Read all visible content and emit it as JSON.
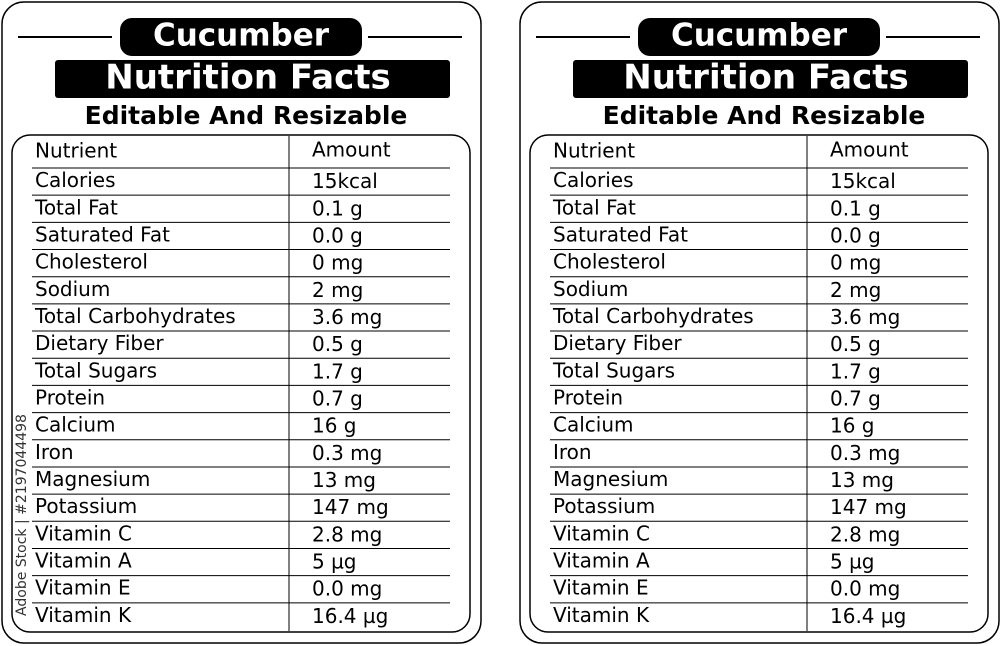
{
  "panels": [
    {
      "title": "Cucumber",
      "subtitle": "Nutrition Facts",
      "tagline": "Editable And Resizable",
      "table": {
        "header": [
          "Nutrient",
          "Amount"
        ],
        "rows": [
          [
            "Calories",
            "15kcal"
          ],
          [
            "Total Fat",
            "0.1 g"
          ],
          [
            "Saturated Fat",
            "0.0 g"
          ],
          [
            "Cholesterol",
            "0 mg"
          ],
          [
            "Sodium",
            "2 mg"
          ],
          [
            "Total Carbohydrates",
            "3.6 mg"
          ],
          [
            "Dietary Fiber",
            "0.5 g"
          ],
          [
            "Total Sugars",
            "1.7 g"
          ],
          [
            "Protein",
            "0.7 g"
          ],
          [
            "Calcium",
            "16 g"
          ],
          [
            "Iron",
            "0.3 mg"
          ],
          [
            "Magnesium",
            "13 mg"
          ],
          [
            "Potassium",
            "147 mg"
          ],
          [
            "Vitamin C",
            "2.8 mg"
          ],
          [
            "Vitamin A",
            "5 µg"
          ],
          [
            "Vitamin E",
            "0.0 mg"
          ],
          [
            "Vitamin K",
            "16.4 µg"
          ]
        ]
      }
    },
    {
      "title": "Cucumber",
      "subtitle": "Nutrition Facts",
      "tagline": "Editable And Resizable",
      "table": {
        "header": [
          "Nutrient",
          "Amount"
        ],
        "rows": [
          [
            "Calories",
            "15kcal"
          ],
          [
            "Total Fat",
            "0.1 g"
          ],
          [
            "Saturated Fat",
            "0.0 g"
          ],
          [
            "Cholesterol",
            "0 mg"
          ],
          [
            "Sodium",
            "2 mg"
          ],
          [
            "Total Carbohydrates",
            "3.6 mg"
          ],
          [
            "Dietary Fiber",
            "0.5 g"
          ],
          [
            "Total Sugars",
            "1.7 g"
          ],
          [
            "Protein",
            "0.7 g"
          ],
          [
            "Calcium",
            "16 g"
          ],
          [
            "Iron",
            "0.3 mg"
          ],
          [
            "Magnesium",
            "13 mg"
          ],
          [
            "Potassium",
            "147 mg"
          ],
          [
            "Vitamin C",
            "2.8 mg"
          ],
          [
            "Vitamin A",
            "5 µg"
          ],
          [
            "Vitamin E",
            "0.0 mg"
          ],
          [
            "Vitamin K",
            "16.4 µg"
          ]
        ]
      }
    }
  ],
  "watermark": "Adobe Stock | #2197044498"
}
